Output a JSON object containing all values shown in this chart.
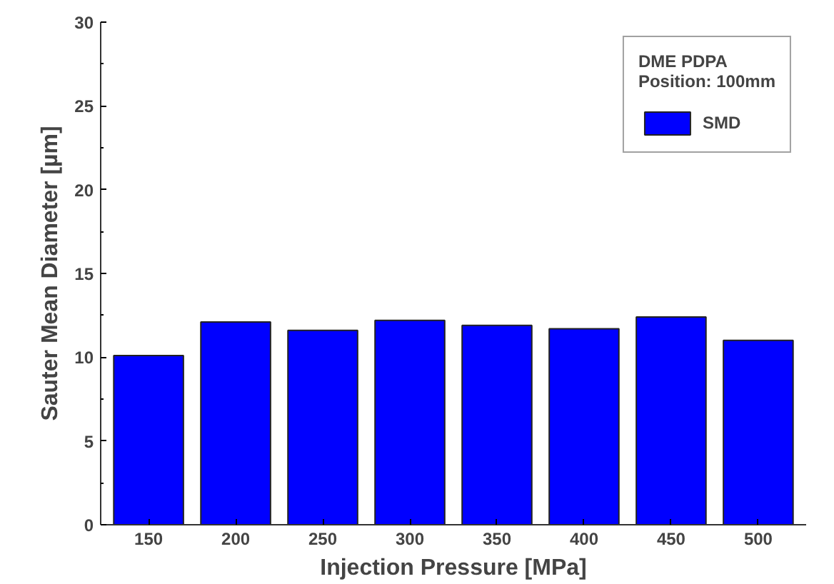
{
  "chart_data": {
    "type": "bar",
    "xlabel": "Injection Pressure [MPa]",
    "ylabel": "Sauter Mean Diameter [µm]",
    "legend_title": "DME PDPA\nPosition: 100mm",
    "categories": [
      "150",
      "200",
      "250",
      "300",
      "350",
      "400",
      "450",
      "500"
    ],
    "series": [
      {
        "name": "SMD",
        "color": "#0000ff",
        "values": [
          10.1,
          12.1,
          11.6,
          12.2,
          11.9,
          11.7,
          12.4,
          11.0
        ]
      }
    ],
    "ylim": [
      0,
      30
    ],
    "yticks": [
      0,
      5,
      10,
      15,
      20,
      25,
      30
    ],
    "grid": false,
    "legend": "top right"
  }
}
